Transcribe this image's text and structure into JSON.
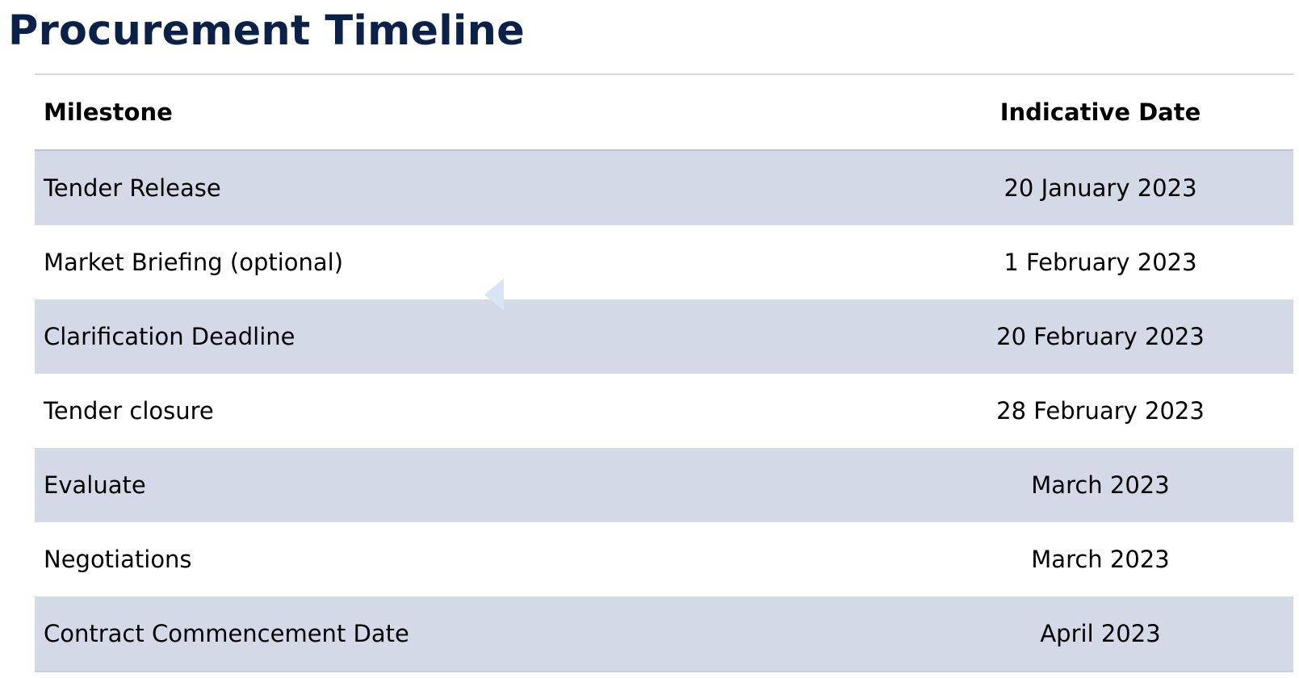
{
  "page": {
    "title": "Procurement Timeline"
  },
  "table": {
    "headers": {
      "milestone": "Milestone",
      "date": "Indicative Date"
    },
    "rows": [
      {
        "milestone": "Tender Release",
        "date": "20 January 2023"
      },
      {
        "milestone": "Market Briefing (optional)",
        "date": "1 February 2023"
      },
      {
        "milestone": "Clarification Deadline",
        "date": "20 February 2023"
      },
      {
        "milestone": "Tender closure",
        "date": "28 February 2023"
      },
      {
        "milestone": "Evaluate",
        "date": "March 2023"
      },
      {
        "milestone": "Negotiations",
        "date": "March 2023"
      },
      {
        "milestone": "Contract Commencement Date",
        "date": "April 2023"
      }
    ]
  },
  "colors": {
    "title": "#0b2147",
    "row_band": "#d3d9e7",
    "handle": "#d8e5f7"
  },
  "icons": {
    "collapse_handle": "triangle-left-icon"
  }
}
